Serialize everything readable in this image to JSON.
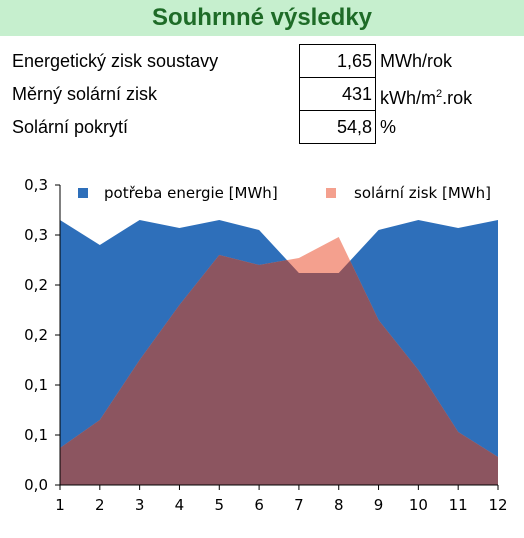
{
  "title": "Souhrnné výsledky",
  "summary": [
    {
      "label": "Energetický zisk soustavy",
      "value": "1,65",
      "unit": "MWh/rok"
    },
    {
      "label": "Měrný solární zisk",
      "value": "431",
      "unit_pre": "kWh/m",
      "unit_sup": "2",
      "unit_post": ".rok"
    },
    {
      "label": "Solární pokrytí",
      "value": "54,8",
      "unit": "%"
    }
  ],
  "colors": {
    "demand": "#2e6fba",
    "solar": "#f4a08e",
    "overlap": "#8c5560",
    "title_bg": "#c6efce",
    "title_text": "#1e6b27"
  },
  "chart_data": {
    "type": "area",
    "x": [
      1,
      2,
      3,
      4,
      5,
      6,
      7,
      8,
      9,
      10,
      11,
      12
    ],
    "ytick_labels": [
      "0,0",
      "0,1",
      "0,1",
      "0,2",
      "0,2",
      "0,3",
      "0,3"
    ],
    "ylim": [
      0,
      0.3
    ],
    "series": [
      {
        "name": "potřeba energie [MWh]",
        "values": [
          0.265,
          0.24,
          0.265,
          0.257,
          0.265,
          0.255,
          0.212,
          0.212,
          0.255,
          0.265,
          0.257,
          0.265
        ]
      },
      {
        "name": "solární zisk [MWh]",
        "values": [
          0.037,
          0.065,
          0.125,
          0.18,
          0.23,
          0.22,
          0.227,
          0.248,
          0.165,
          0.115,
          0.053,
          0.028
        ]
      }
    ],
    "legend_position": "top"
  }
}
